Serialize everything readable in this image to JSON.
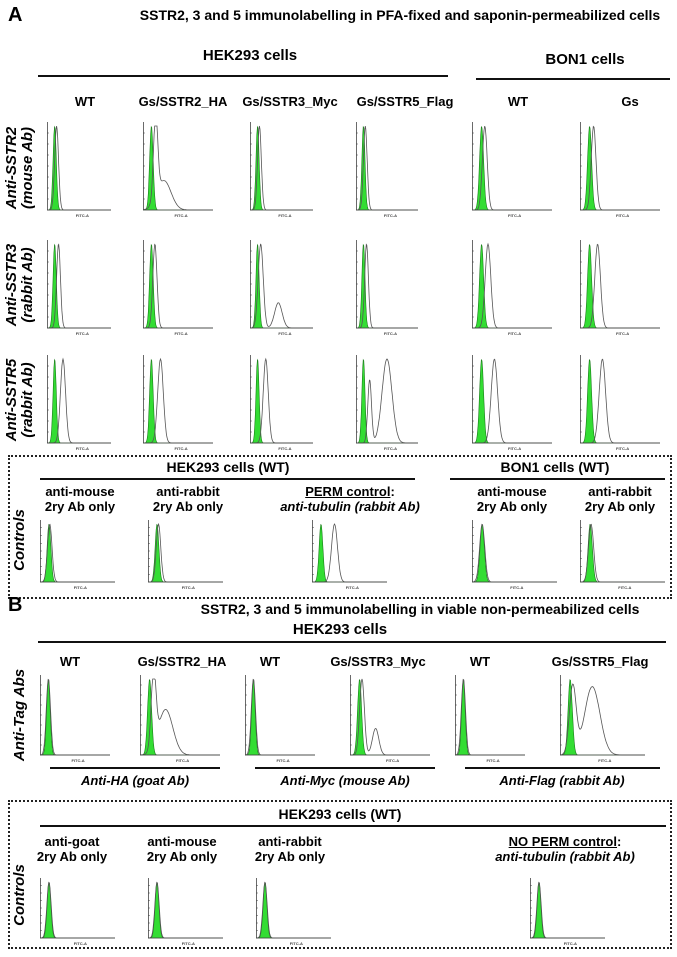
{
  "panelA": {
    "letter": "A",
    "title": "SSTR2, 3 and 5 immunolabelling in PFA-fixed and saponin-permeabilized cells",
    "group_hek": "HEK293 cells",
    "group_bon": "BON1 cells",
    "columns": [
      "WT",
      "Gs/SSTR2_HA",
      "Gs/SSTR3_Myc",
      "Gs/SSTR5_Flag",
      "WT",
      "Gs"
    ],
    "rows": [
      {
        "line1": "Anti-SSTR2",
        "line2": "(mouse Ab)"
      },
      {
        "line1": "Anti-SSTR3",
        "line2": "(rabbit Ab)"
      },
      {
        "line1": "Anti-SSTR5",
        "line2": "(rabbit Ab)"
      }
    ],
    "controls": {
      "row_label": "Controls",
      "group_hek": "HEK293 cells (WT)",
      "group_bon": "BON1 cells (WT)",
      "labels": [
        {
          "l1": "anti-mouse",
          "l2": "2ry Ab only"
        },
        {
          "l1": "anti-rabbit",
          "l2": "2ry Ab only"
        },
        {
          "l1": "PERM control",
          "sep": ":",
          "l2": "anti-tubulin (rabbit Ab)"
        },
        {
          "l1": "anti-mouse",
          "l2": "2ry Ab only"
        },
        {
          "l1": "anti-rabbit",
          "l2": "2ry Ab only"
        }
      ]
    }
  },
  "panelB": {
    "letter": "B",
    "title": "SSTR2, 3 and 5 immunolabelling in viable non-permeabilized cells",
    "group_hek": "HEK293 cells",
    "row_label": "Anti-Tag Abs",
    "columns": [
      "WT",
      "Gs/SSTR2_HA",
      "WT",
      "Gs/SSTR3_Myc",
      "WT",
      "Gs/SSTR5_Flag"
    ],
    "antibodies": [
      "Anti-HA (goat Ab)",
      "Anti-Myc (mouse Ab)",
      "Anti-Flag (rabbit Ab)"
    ],
    "controls": {
      "row_label": "Controls",
      "group_hek": "HEK293 cells (WT)",
      "labels": [
        {
          "l1": "anti-goat",
          "l2": "2ry Ab only"
        },
        {
          "l1": "anti-mouse",
          "l2": "2ry Ab only"
        },
        {
          "l1": "anti-rabbit",
          "l2": "2ry Ab only"
        },
        {
          "l1": "NO PERM control",
          "sep": ":",
          "l2": "anti-tubulin (rabbit Ab)"
        }
      ]
    }
  },
  "axis_label": "FITC-A",
  "colors": {
    "control_fill": "#33dd33",
    "sample_line": "#555555"
  },
  "histograms": {
    "control_peak": [
      0.12,
      0.025
    ],
    "A_r0": [
      [
        [
          0.15,
          0.03,
          1
        ]
      ],
      [
        [
          0.18,
          0.03,
          1
        ],
        [
          0.3,
          0.1,
          0.35
        ]
      ],
      [
        [
          0.15,
          0.03,
          1
        ]
      ],
      [
        [
          0.15,
          0.03,
          1
        ]
      ],
      [
        [
          0.16,
          0.03,
          1
        ]
      ],
      [
        [
          0.17,
          0.03,
          1
        ]
      ]
    ],
    "A_r1": [
      [
        [
          0.18,
          0.03,
          1
        ]
      ],
      [
        [
          0.17,
          0.03,
          1
        ]
      ],
      [
        [
          0.17,
          0.04,
          1
        ],
        [
          0.45,
          0.06,
          0.3
        ]
      ],
      [
        [
          0.17,
          0.03,
          1
        ]
      ],
      [
        [
          0.2,
          0.035,
          1
        ]
      ],
      [
        [
          0.22,
          0.035,
          1
        ]
      ]
    ],
    "A_r2": [
      [
        [
          0.25,
          0.04,
          1
        ]
      ],
      [
        [
          0.25,
          0.04,
          1
        ]
      ],
      [
        [
          0.25,
          0.04,
          1
        ]
      ],
      [
        [
          0.22,
          0.03,
          0.75
        ],
        [
          0.5,
          0.08,
          1
        ]
      ],
      [
        [
          0.28,
          0.04,
          1
        ]
      ],
      [
        [
          0.28,
          0.04,
          1
        ]
      ]
    ],
    "A_c": [
      [
        [
          0.13,
          0.03,
          1
        ]
      ],
      [
        [
          0.14,
          0.03,
          1
        ]
      ],
      [
        [
          0.3,
          0.04,
          1
        ]
      ],
      [
        [
          0.12,
          0.03,
          1
        ]
      ],
      [
        [
          0.13,
          0.03,
          1
        ]
      ]
    ],
    "B_r0": [
      [
        [
          0.12,
          0.03,
          1
        ]
      ],
      [
        [
          0.17,
          0.03,
          1
        ],
        [
          0.32,
          0.09,
          0.6
        ]
      ],
      [
        [
          0.12,
          0.03,
          1
        ]
      ],
      [
        [
          0.15,
          0.03,
          1
        ],
        [
          0.32,
          0.04,
          0.35
        ]
      ],
      [
        [
          0.12,
          0.03,
          1
        ]
      ],
      [
        [
          0.15,
          0.04,
          0.9
        ],
        [
          0.38,
          0.09,
          0.9
        ]
      ]
    ],
    "B_c": [
      [
        [
          0.12,
          0.028,
          1
        ]
      ],
      [
        [
          0.12,
          0.028,
          1
        ]
      ],
      [
        [
          0.12,
          0.028,
          1
        ]
      ],
      [
        [
          0.12,
          0.028,
          1
        ]
      ]
    ]
  }
}
